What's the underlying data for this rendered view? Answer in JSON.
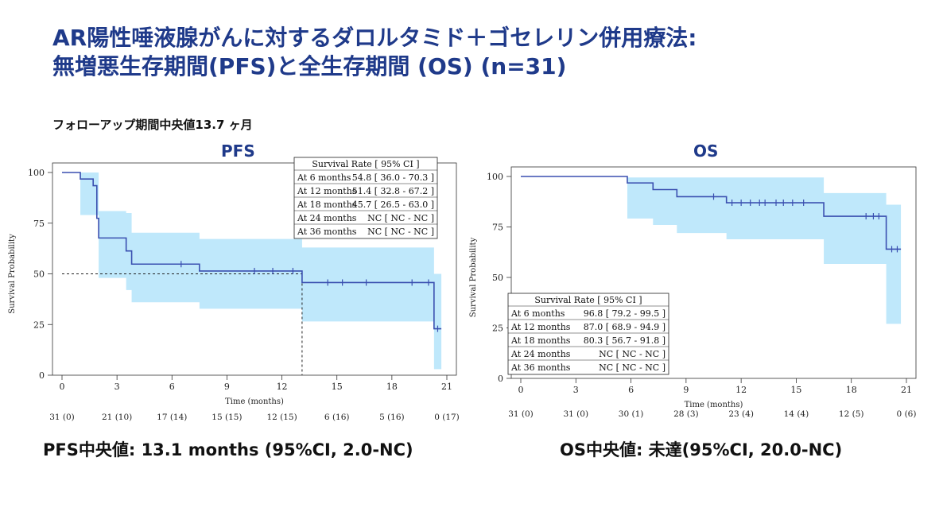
{
  "title": {
    "line1": "AR陽性唾液腺がんに対するダロルタミド＋ゴセレリン併用療法:",
    "line2": "無増悪生存期間(PFS)と全生存期間 (OS) (n=31)"
  },
  "followup": "フォローアップ期間中央値13.7 ヶ月",
  "pfs_median": "PFS中央値: 13.1 months (95%CI, 2.0-NC)",
  "os_median": "OS中央値: 未達(95%CI, 20.0-NC)",
  "chart_data": [
    {
      "id": "pfs",
      "type": "line",
      "title": "PFS",
      "xlabel": "Time (months)",
      "ylabel": "Survival Probability",
      "xlim": [
        0,
        21
      ],
      "ylim": [
        0,
        100
      ],
      "xticks": [
        0,
        3,
        6,
        9,
        12,
        15,
        18,
        21
      ],
      "yticks": [
        0,
        25,
        50,
        75,
        100
      ],
      "steps": [
        [
          0,
          100
        ],
        [
          1.0,
          96.8
        ],
        [
          1.7,
          93.5
        ],
        [
          1.9,
          77.4
        ],
        [
          2.0,
          67.7
        ],
        [
          3.5,
          61.3
        ],
        [
          3.8,
          54.8
        ],
        [
          7.5,
          51.4
        ],
        [
          13.1,
          45.7
        ],
        [
          20.2,
          45.7
        ],
        [
          20.3,
          22.9
        ],
        [
          20.7,
          22.9
        ]
      ],
      "ci_upper": [
        [
          0,
          100
        ],
        [
          1.0,
          100
        ],
        [
          2.0,
          81
        ],
        [
          3.5,
          80
        ],
        [
          3.8,
          70.3
        ],
        [
          7.5,
          67.2
        ],
        [
          13.1,
          63.0
        ],
        [
          20.2,
          63.0
        ],
        [
          20.3,
          50
        ],
        [
          20.7,
          50
        ]
      ],
      "ci_lower": [
        [
          0,
          100
        ],
        [
          1.0,
          79
        ],
        [
          2.0,
          48
        ],
        [
          3.5,
          42
        ],
        [
          3.8,
          36.0
        ],
        [
          7.5,
          32.8
        ],
        [
          13.1,
          26.5
        ],
        [
          20.2,
          26.5
        ],
        [
          20.3,
          3
        ],
        [
          20.7,
          3
        ]
      ],
      "censors": [
        [
          6.5,
          54.8
        ],
        [
          10.5,
          51.4
        ],
        [
          11.5,
          51.4
        ],
        [
          12.6,
          51.4
        ],
        [
          14.5,
          45.7
        ],
        [
          15.3,
          45.7
        ],
        [
          16.6,
          45.7
        ],
        [
          19.1,
          45.7
        ],
        [
          20.0,
          45.7
        ],
        [
          20.5,
          22.9
        ]
      ],
      "median_line": {
        "x": 13.1,
        "y": 50
      },
      "legend_position": "top-right",
      "table": {
        "header": "Survival Rate [ 95% CI ]",
        "rows": [
          {
            "label": "At  6 months",
            "value": "54.8  [ 36.0 - 70.3 ]"
          },
          {
            "label": "At 12 months",
            "value": "51.4  [ 32.8 - 67.2 ]"
          },
          {
            "label": "At 18 months",
            "value": "45.7  [ 26.5 - 63.0 ]"
          },
          {
            "label": "At 24 months",
            "value": "NC [ NC - NC ]"
          },
          {
            "label": "At 36 months",
            "value": "NC [ NC - NC ]"
          }
        ]
      },
      "risk": [
        "31 (0)",
        "21 (10)",
        "17 (14)",
        "15 (15)",
        "12 (15)",
        "6 (16)",
        "5 (16)",
        "0 (17)"
      ]
    },
    {
      "id": "os",
      "type": "line",
      "title": "OS",
      "xlabel": "Time (months)",
      "ylabel": "Survival Probability",
      "xlim": [
        0,
        21
      ],
      "ylim": [
        0,
        100
      ],
      "xticks": [
        0,
        3,
        6,
        9,
        12,
        15,
        18,
        21
      ],
      "yticks": [
        0,
        25,
        50,
        75,
        100
      ],
      "steps": [
        [
          0,
          100
        ],
        [
          5.8,
          96.8
        ],
        [
          7.2,
          93.5
        ],
        [
          8.5,
          90.0
        ],
        [
          11.2,
          87.0
        ],
        [
          16.5,
          80.3
        ],
        [
          19.9,
          64.0
        ],
        [
          20.7,
          64.0
        ]
      ],
      "ci_upper": [
        [
          0,
          100
        ],
        [
          5.8,
          99.5
        ],
        [
          16.5,
          91.8
        ],
        [
          19.9,
          86
        ],
        [
          20.7,
          86
        ]
      ],
      "ci_lower": [
        [
          0,
          100
        ],
        [
          5.8,
          79.2
        ],
        [
          7.2,
          76
        ],
        [
          8.5,
          72
        ],
        [
          11.2,
          68.9
        ],
        [
          16.5,
          56.7
        ],
        [
          19.9,
          27
        ],
        [
          20.7,
          27
        ]
      ],
      "censors": [
        [
          10.5,
          90.0
        ],
        [
          11.5,
          87.0
        ],
        [
          12.0,
          87.0
        ],
        [
          12.5,
          87.0
        ],
        [
          13.0,
          87.0
        ],
        [
          13.3,
          87.0
        ],
        [
          13.9,
          87.0
        ],
        [
          14.3,
          87.0
        ],
        [
          14.8,
          87.0
        ],
        [
          15.4,
          87.0
        ],
        [
          18.8,
          80.3
        ],
        [
          19.2,
          80.3
        ],
        [
          19.5,
          80.3
        ],
        [
          20.2,
          64.0
        ],
        [
          20.5,
          64.0
        ]
      ],
      "legend_position": "bottom-left",
      "table": {
        "header": "Survival Rate [ 95% CI ]",
        "rows": [
          {
            "label": "At  6 months",
            "value": "96.8  [ 79.2 - 99.5 ]"
          },
          {
            "label": "At 12 months",
            "value": "87.0  [ 68.9 - 94.9 ]"
          },
          {
            "label": "At 18 months",
            "value": "80.3  [ 56.7 - 91.8 ]"
          },
          {
            "label": "At 24 months",
            "value": "NC [ NC - NC ]"
          },
          {
            "label": "At 36 months",
            "value": "NC [ NC - NC ]"
          }
        ]
      },
      "risk": [
        "31 (0)",
        "31 (0)",
        "30 (1)",
        "28 (3)",
        "23 (4)",
        "14 (4)",
        "12 (5)",
        "0 (6)"
      ]
    }
  ]
}
